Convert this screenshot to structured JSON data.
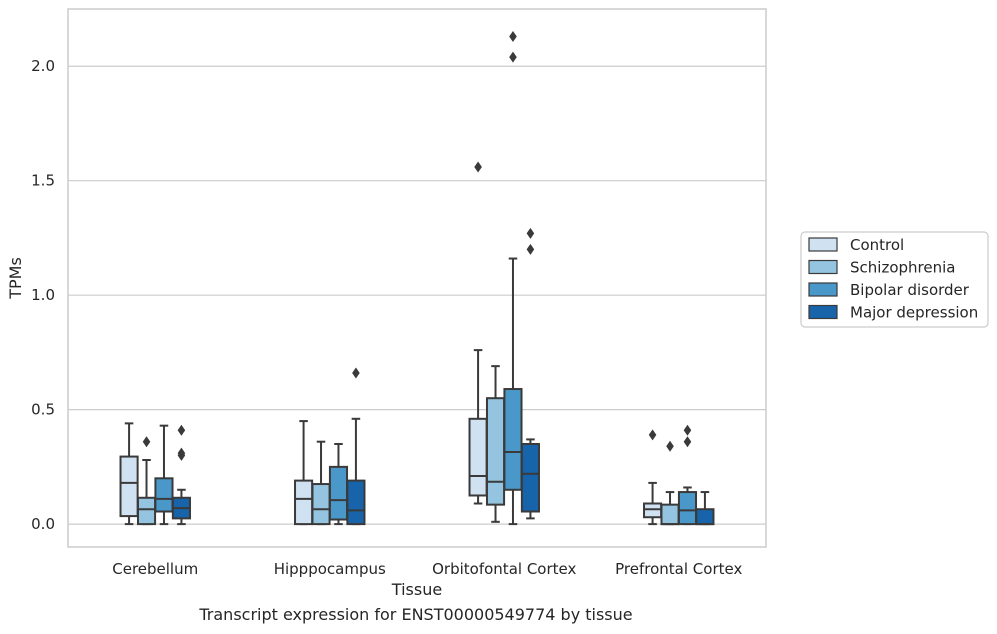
{
  "chart_data": {
    "type": "box",
    "xlabel": "Tissue",
    "ylabel": "TPMs",
    "caption": "Transcript expression for ENST00000549774 by tissue",
    "categories": [
      "Cerebellum",
      "Hipppocampus",
      "Orbitofontal Cortex",
      "Prefrontal Cortex"
    ],
    "ylim": [
      -0.1,
      2.25
    ],
    "yticks": [
      0.0,
      0.5,
      1.0,
      1.5,
      2.0
    ],
    "ytick_labels": [
      "0.0",
      "0.5",
      "1.0",
      "1.5",
      "2.0"
    ],
    "grid": "horizontal",
    "legend_position": "right",
    "series": [
      {
        "name": "Control",
        "color": "#d0e1f2",
        "boxes": [
          {
            "whislo": 0.0,
            "q1": 0.035,
            "med": 0.18,
            "q3": 0.295,
            "whishi": 0.44,
            "fliers": []
          },
          {
            "whislo": 0.0,
            "q1": 0.0,
            "med": 0.11,
            "q3": 0.19,
            "whishi": 0.45,
            "fliers": []
          },
          {
            "whislo": 0.09,
            "q1": 0.125,
            "med": 0.21,
            "q3": 0.46,
            "whishi": 0.76,
            "fliers": [
              1.56
            ]
          },
          {
            "whislo": 0.0,
            "q1": 0.03,
            "med": 0.065,
            "q3": 0.09,
            "whishi": 0.18,
            "fliers": [
              0.39
            ]
          }
        ]
      },
      {
        "name": "Schizophrenia",
        "color": "#94c4df",
        "boxes": [
          {
            "whislo": 0.0,
            "q1": 0.0,
            "med": 0.065,
            "q3": 0.115,
            "whishi": 0.28,
            "fliers": [
              0.36
            ]
          },
          {
            "whislo": 0.0,
            "q1": 0.0,
            "med": 0.065,
            "q3": 0.175,
            "whishi": 0.36,
            "fliers": []
          },
          {
            "whislo": 0.01,
            "q1": 0.085,
            "med": 0.185,
            "q3": 0.55,
            "whishi": 0.69,
            "fliers": []
          },
          {
            "whislo": 0.0,
            "q1": 0.0,
            "med": 0.0,
            "q3": 0.085,
            "whishi": 0.14,
            "fliers": [
              0.34
            ]
          }
        ]
      },
      {
        "name": "Bipolar disorder",
        "color": "#4a98c9",
        "boxes": [
          {
            "whislo": 0.0,
            "q1": 0.055,
            "med": 0.11,
            "q3": 0.2,
            "whishi": 0.43,
            "fliers": []
          },
          {
            "whislo": 0.0,
            "q1": 0.02,
            "med": 0.105,
            "q3": 0.25,
            "whishi": 0.35,
            "fliers": []
          },
          {
            "whislo": 0.0,
            "q1": 0.15,
            "med": 0.315,
            "q3": 0.59,
            "whishi": 1.16,
            "fliers": [
              2.04,
              2.13
            ]
          },
          {
            "whislo": 0.0,
            "q1": 0.0,
            "med": 0.06,
            "q3": 0.14,
            "whishi": 0.16,
            "fliers": [
              0.36,
              0.41
            ]
          }
        ]
      },
      {
        "name": "Major depression",
        "color": "#1764ab",
        "boxes": [
          {
            "whislo": 0.0,
            "q1": 0.025,
            "med": 0.07,
            "q3": 0.115,
            "whishi": 0.15,
            "fliers": [
              0.3,
              0.31,
              0.41
            ]
          },
          {
            "whislo": 0.0,
            "q1": 0.0,
            "med": 0.06,
            "q3": 0.19,
            "whishi": 0.46,
            "fliers": [
              0.66
            ]
          },
          {
            "whislo": 0.025,
            "q1": 0.055,
            "med": 0.22,
            "q3": 0.35,
            "whishi": 0.37,
            "fliers": [
              1.2,
              1.27
            ]
          },
          {
            "whislo": 0.0,
            "q1": 0.0,
            "med": 0.0,
            "q3": 0.065,
            "whishi": 0.14,
            "fliers": []
          }
        ]
      }
    ]
  }
}
